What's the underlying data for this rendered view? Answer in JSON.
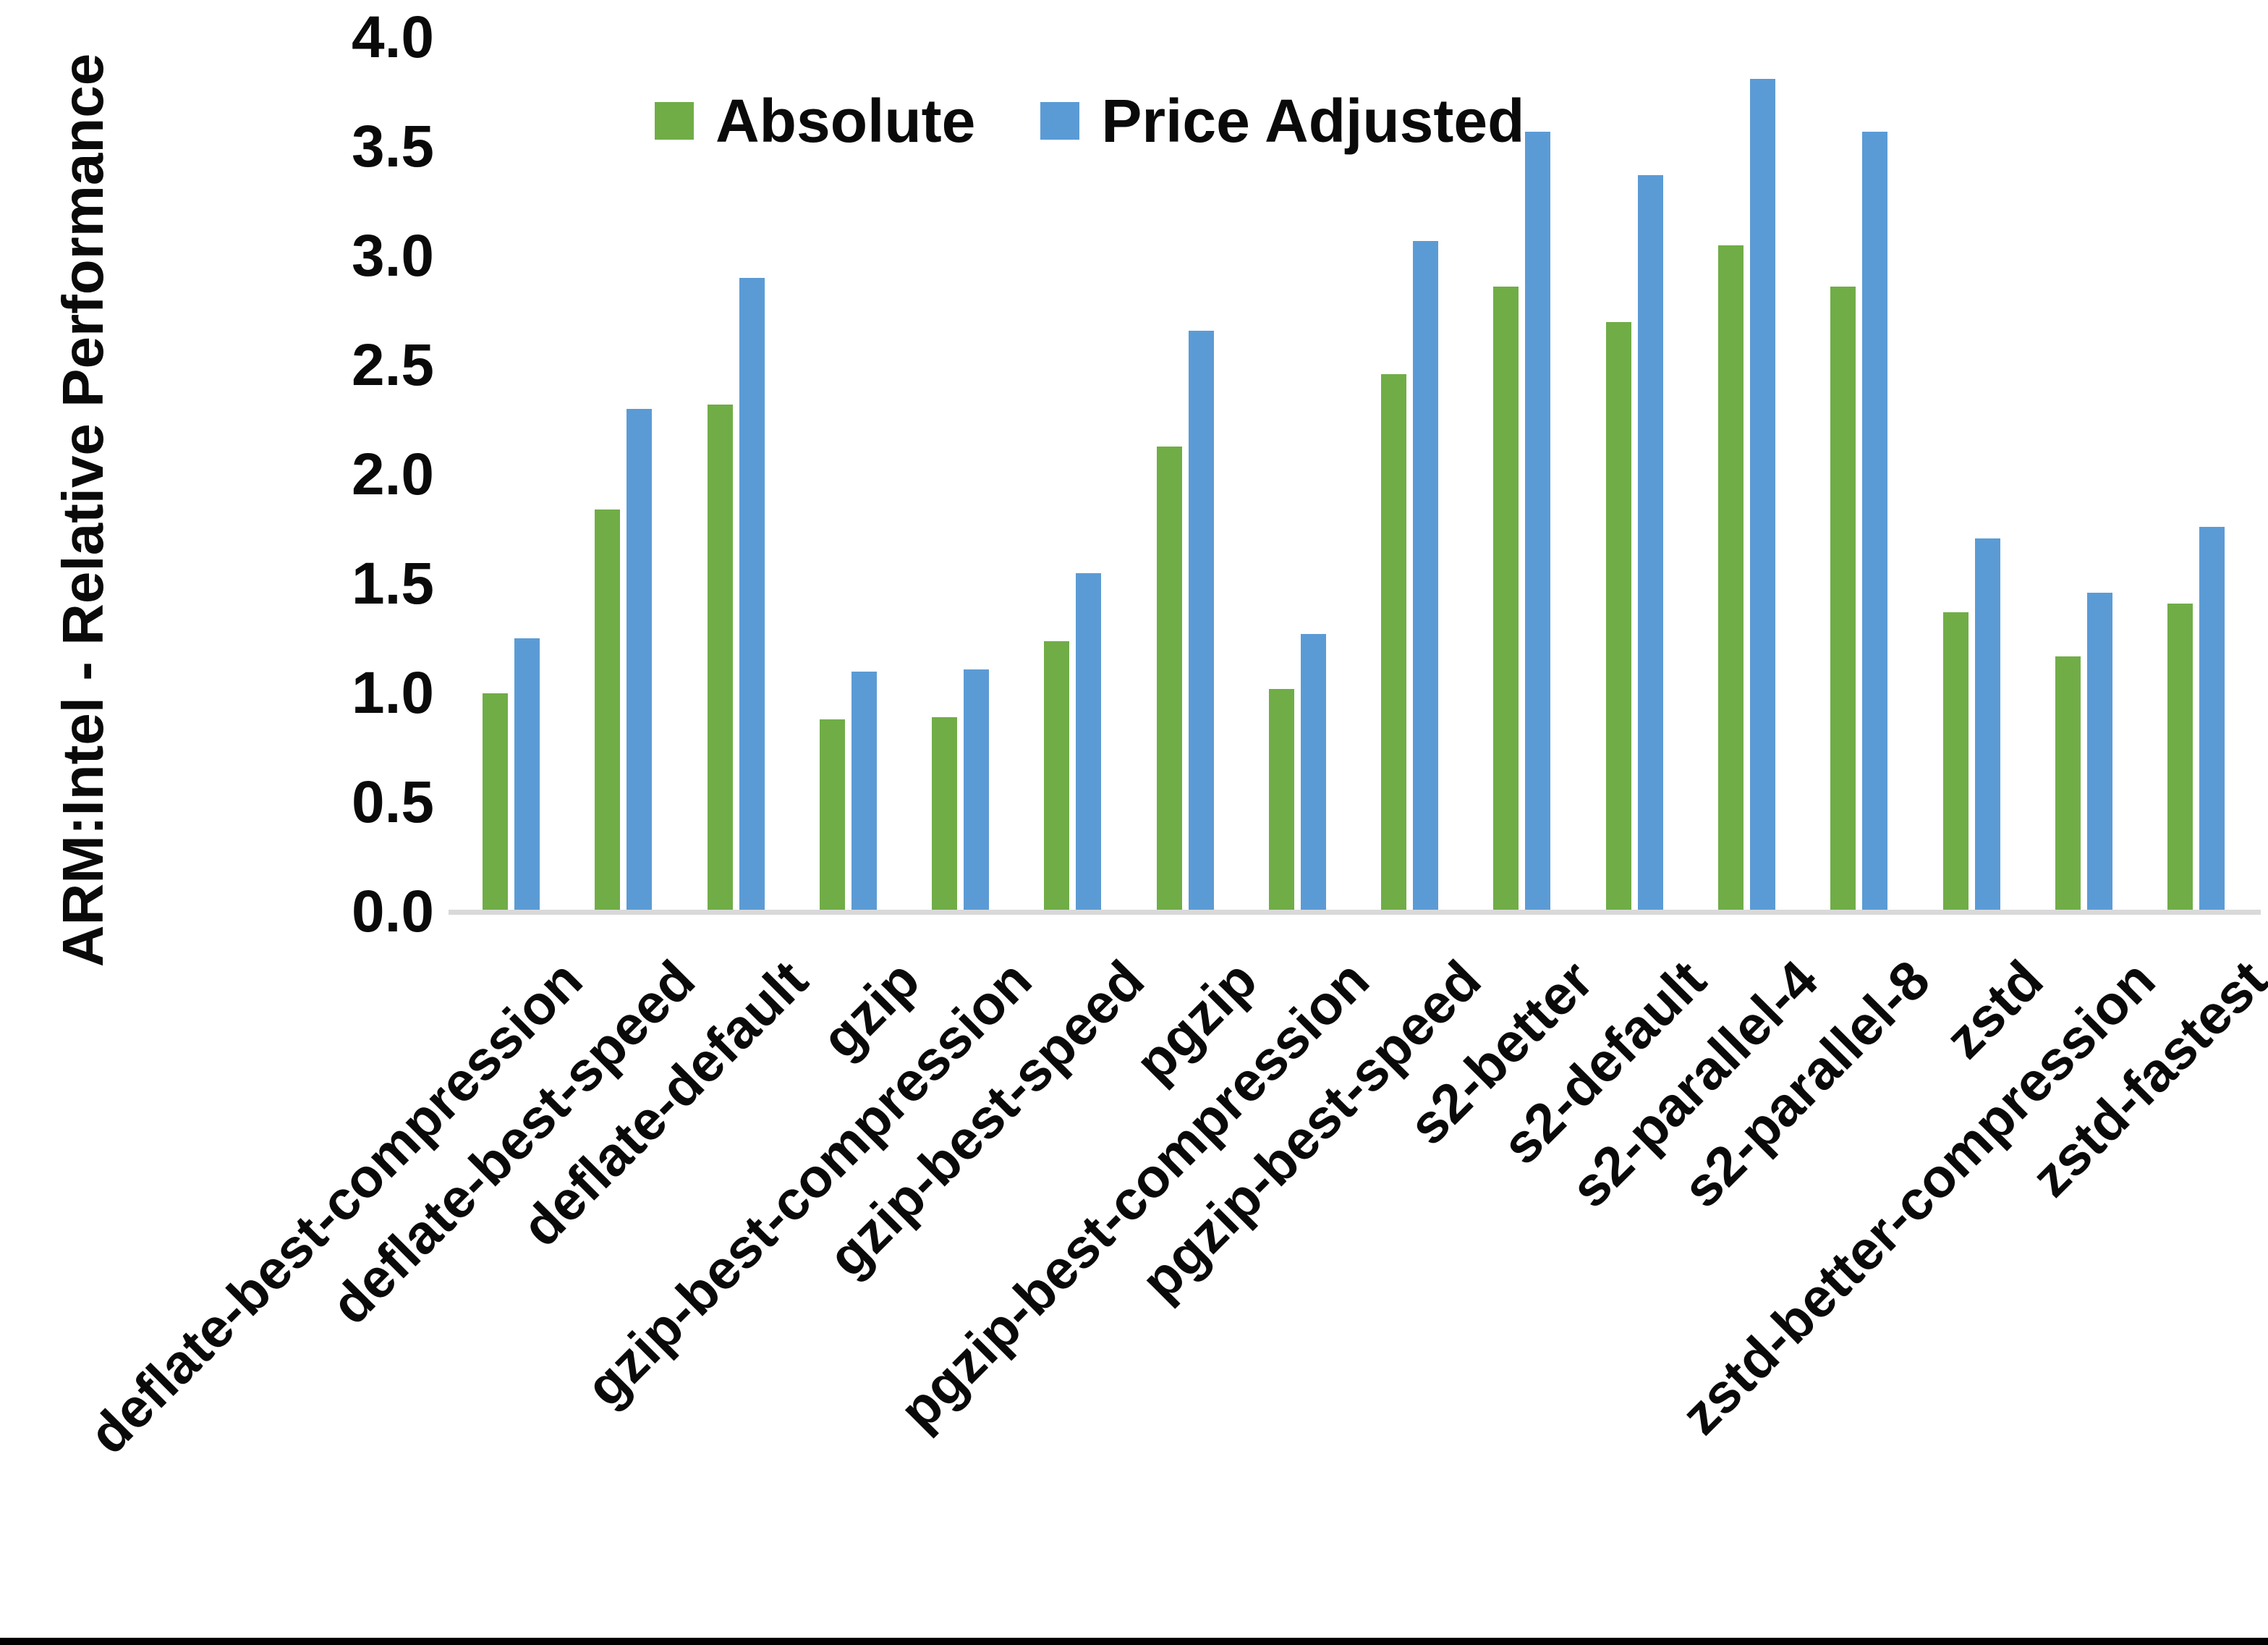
{
  "chart_data": {
    "type": "bar",
    "title": "",
    "xlabel": "",
    "ylabel": "ARM:Intel - Relative Performance",
    "ylim": [
      0.0,
      4.0
    ],
    "ytick_step": 0.5,
    "yticks": [
      "4.0",
      "3.5",
      "3.0",
      "2.5",
      "2.0",
      "1.5",
      "1.0",
      "0.5",
      "0.0"
    ],
    "grid": false,
    "legend_position": "top-center",
    "categories": [
      "deflate-best-compression",
      "deflate-best-speed",
      "deflate-default",
      "gzip",
      "gzip-best-compression",
      "gzip-best-speed",
      "pgzip",
      "pgzip-best-compression",
      "pgzip-best-speed",
      "s2-better",
      "s2-default",
      "s2-parallel-4",
      "s2-parallel-8",
      "zstd",
      "zstd-better-compression",
      "zstd-fastest"
    ],
    "series": [
      {
        "name": "Absolute",
        "color": "#70AD47",
        "values": [
          1.0,
          1.84,
          2.32,
          0.88,
          0.89,
          1.24,
          2.13,
          1.02,
          2.46,
          2.86,
          2.7,
          3.05,
          2.86,
          1.37,
          1.17,
          1.41
        ]
      },
      {
        "name": "Price Adjusted",
        "color": "#5B9BD5",
        "values": [
          1.25,
          2.3,
          2.9,
          1.1,
          1.11,
          1.55,
          2.66,
          1.27,
          3.07,
          3.57,
          3.37,
          3.81,
          3.57,
          1.71,
          1.46,
          1.76
        ]
      }
    ]
  },
  "colors": {
    "absolute_green": "#70AD47",
    "price_adjusted_blue": "#5B9BD5",
    "axis_line_gray": "#d9d9d9",
    "text_black": "#0a0a0a",
    "frame_black": "#000000"
  }
}
